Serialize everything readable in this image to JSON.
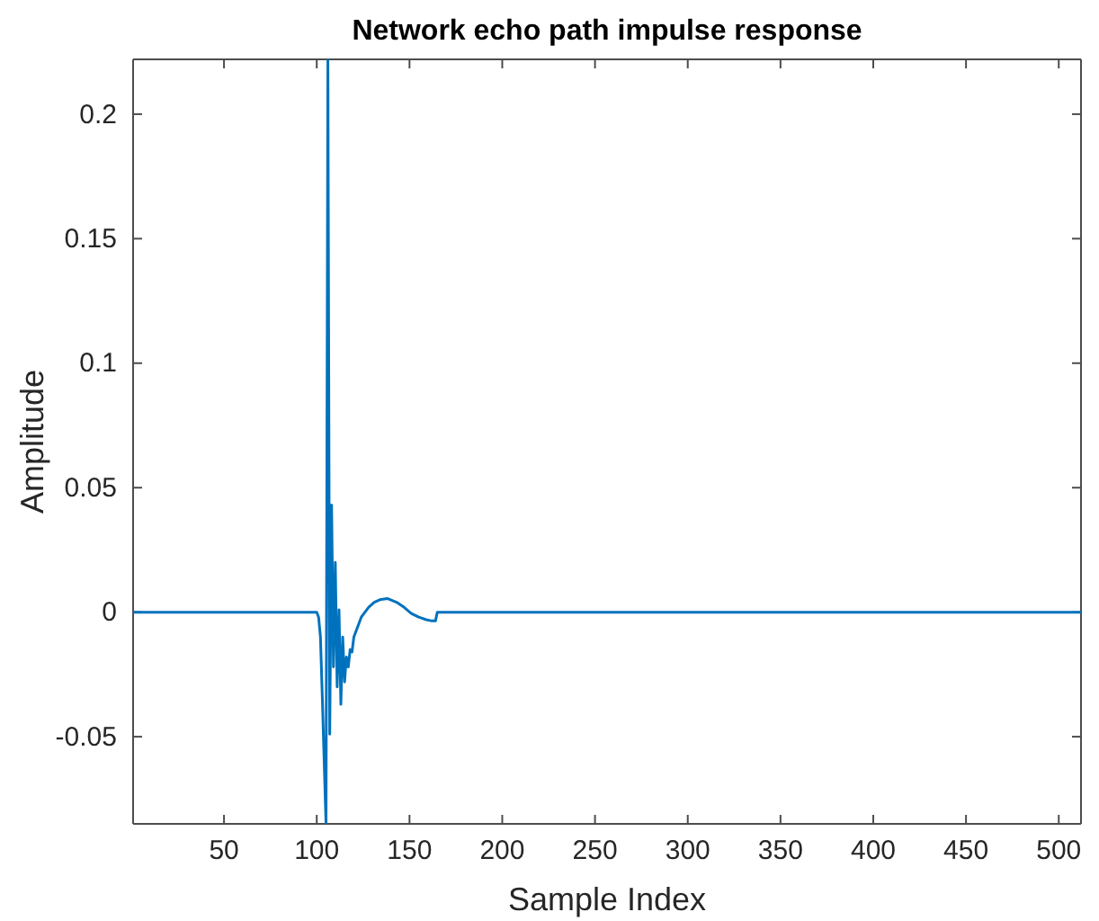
{
  "chart_data": {
    "type": "line",
    "title": "Network echo path impulse response",
    "xlabel": "Sample Index",
    "ylabel": "Amplitude",
    "x": [
      1,
      100,
      101,
      102,
      103,
      104,
      105,
      106,
      107,
      108,
      109,
      110,
      111,
      112,
      113,
      114,
      115,
      116,
      117,
      118,
      119,
      120,
      122,
      124,
      126,
      128,
      131,
      134,
      138,
      143,
      147,
      151,
      155,
      159,
      162,
      164,
      165,
      166,
      512
    ],
    "series": [
      {
        "color": "#0072bd",
        "values": [
          0,
          0,
          -0.002,
          -0.01,
          -0.034,
          -0.06,
          -0.085,
          0.222,
          -0.049,
          0.043,
          -0.022,
          0.02,
          -0.03,
          0.001,
          -0.037,
          -0.01,
          -0.028,
          -0.018,
          -0.022,
          -0.015,
          -0.016,
          -0.01,
          -0.006,
          -0.002,
          0,
          0.002,
          0.004,
          0.005,
          0.0055,
          0.004,
          0.002,
          -0.0005,
          -0.002,
          -0.003,
          -0.0035,
          -0.0035,
          0,
          0,
          0
        ]
      }
    ],
    "xlim": [
      1,
      512
    ],
    "xticks": [
      50,
      100,
      150,
      200,
      250,
      300,
      350,
      400,
      450,
      500
    ],
    "ylim": [
      -0.085,
      0.222
    ],
    "yticks": [
      -0.05,
      0,
      0.05,
      0.1,
      0.15,
      0.2
    ]
  }
}
